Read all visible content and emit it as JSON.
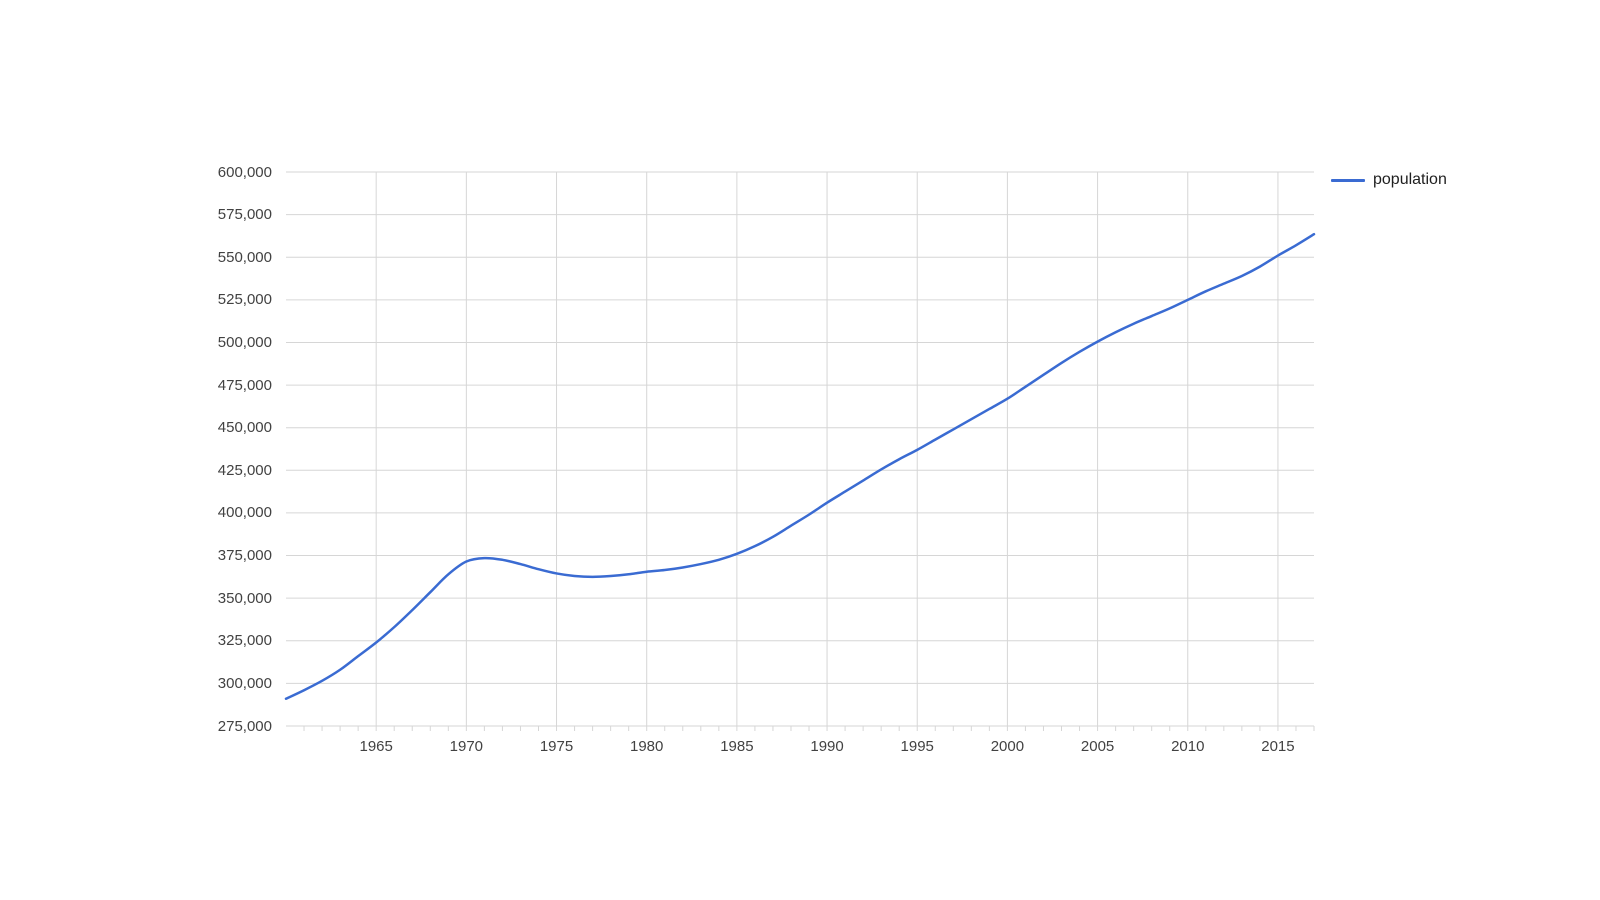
{
  "style": {
    "background": "#ffffff",
    "line_color": "#3a6bd2",
    "gridline_color": "#d6d6d6",
    "axis_label_color": "#424242",
    "legend_text_color": "#1f1f1f"
  },
  "legend": {
    "label": "population",
    "position": "right"
  },
  "chart_data": {
    "type": "line",
    "title": "",
    "xlabel": "",
    "ylabel": "",
    "smooth": true,
    "grid": true,
    "legend_position": "right",
    "x_axis": {
      "range": [
        1960,
        2017
      ],
      "major_ticks": [
        1965,
        1970,
        1975,
        1980,
        1985,
        1990,
        1995,
        2000,
        2005,
        2010,
        2015
      ],
      "major_tick_labels": [
        "1965",
        "1970",
        "1975",
        "1980",
        "1985",
        "1990",
        "1995",
        "2000",
        "2005",
        "2010",
        "2015"
      ],
      "minor_tick_step": 1
    },
    "y_axis": {
      "range": [
        275000,
        600000
      ],
      "tick_step": 25000,
      "tick_values": [
        275000,
        300000,
        325000,
        350000,
        375000,
        400000,
        425000,
        450000,
        475000,
        500000,
        525000,
        550000,
        575000,
        600000
      ],
      "tick_labels": [
        "275,000",
        "300,000",
        "325,000",
        "350,000",
        "375,000",
        "400,000",
        "425,000",
        "450,000",
        "475,000",
        "500,000",
        "525,000",
        "550,000",
        "575,000",
        "600,000"
      ]
    },
    "series": [
      {
        "name": "population",
        "color": "#3a6bd2",
        "x": [
          1960,
          1961,
          1962,
          1963,
          1964,
          1965,
          1966,
          1967,
          1968,
          1969,
          1970,
          1971,
          1972,
          1973,
          1974,
          1975,
          1976,
          1977,
          1978,
          1979,
          1980,
          1981,
          1982,
          1983,
          1984,
          1985,
          1986,
          1987,
          1988,
          1989,
          1990,
          1991,
          1992,
          1993,
          1994,
          1995,
          1996,
          1997,
          1998,
          1999,
          2000,
          2001,
          2002,
          2003,
          2004,
          2005,
          2006,
          2007,
          2008,
          2009,
          2010,
          2011,
          2012,
          2013,
          2014,
          2015,
          2016,
          2017
        ],
        "values": [
          291000,
          296000,
          301500,
          308000,
          316000,
          324000,
          333000,
          343000,
          353500,
          364000,
          371500,
          373500,
          372500,
          370000,
          367000,
          364500,
          363000,
          362500,
          363000,
          364000,
          365500,
          366500,
          368000,
          370000,
          372500,
          376000,
          380500,
          386000,
          392500,
          399000,
          406000,
          412500,
          419000,
          425500,
          431500,
          437000,
          443000,
          449000,
          455000,
          461000,
          467000,
          474000,
          481000,
          488000,
          494500,
          500500,
          506000,
          511000,
          515500,
          520000,
          525000,
          530000,
          534500,
          539000,
          544500,
          551000,
          557000,
          563500
        ]
      }
    ]
  }
}
